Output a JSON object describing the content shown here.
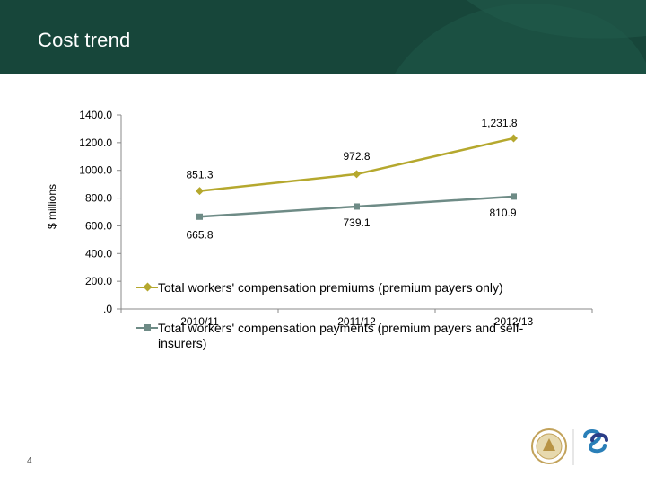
{
  "slide": {
    "title": "Cost trend",
    "page_number": "4"
  },
  "colors": {
    "header_bg": "#17463a",
    "premiums": "#b5a82e",
    "payments": "#6e8b86"
  },
  "logos": {
    "left": "crest-logo",
    "right": "workcover-wa-logo",
    "right_text": "WorkCoverWA"
  },
  "chart_data": {
    "type": "line",
    "categories": [
      "2010/11",
      "2011/12",
      "2012/13"
    ],
    "ylabel": "$ millions",
    "ylim": [
      0,
      1400
    ],
    "yticks": [
      0,
      200,
      400,
      600,
      800,
      1000,
      1200,
      1400
    ],
    "ytick_labels": [
      ".0",
      "200.0",
      "400.0",
      "600.0",
      "800.0",
      "1000.0",
      "1200.0",
      "1400.0"
    ],
    "grid": false,
    "legend_position": "bottom",
    "series": [
      {
        "name": "Total workers' compensation premiums (premium payers only)",
        "values": [
          851.3,
          972.8,
          1231.8
        ],
        "labels": [
          "851.3",
          "972.8",
          "1,231.8"
        ],
        "marker": "diamond",
        "color": "#b5a82e"
      },
      {
        "name": "Total workers' compensation payments (premium payers and self-insurers)",
        "values": [
          665.8,
          739.1,
          810.9
        ],
        "labels": [
          "665.8",
          "739.1",
          "810.9"
        ],
        "marker": "square",
        "color": "#6e8b86"
      }
    ]
  }
}
